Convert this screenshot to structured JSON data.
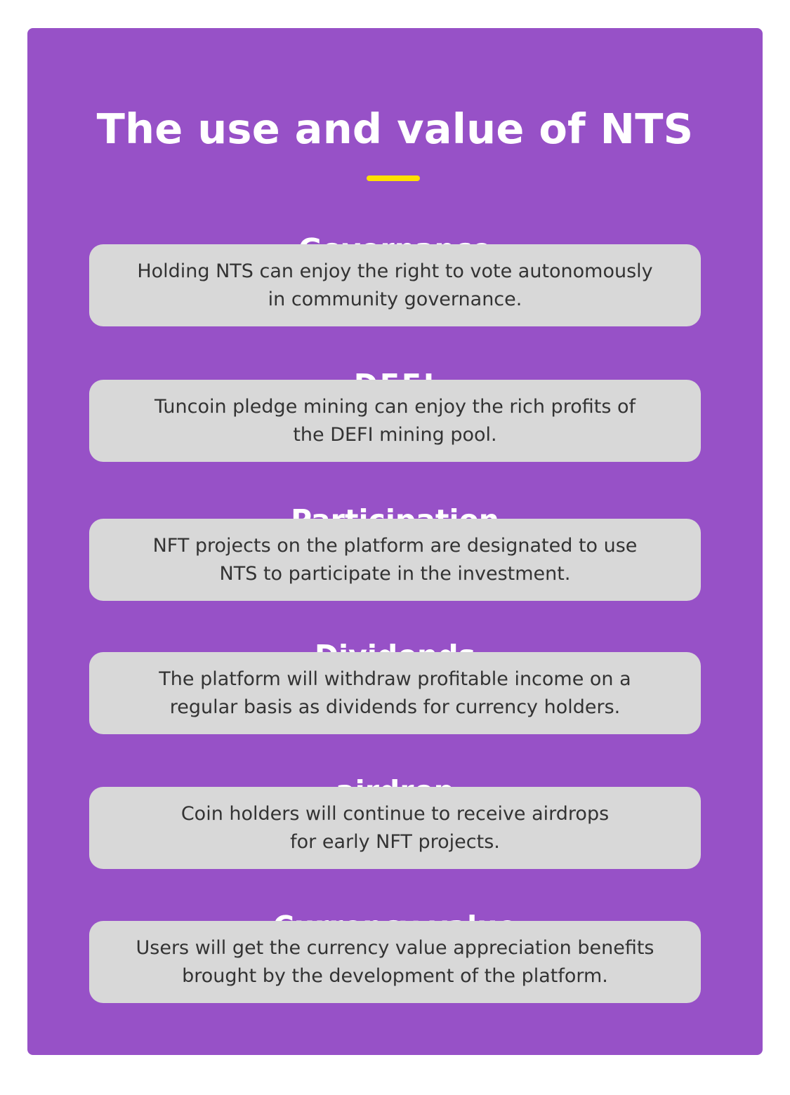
{
  "title": "The use and value of NTS",
  "colors": {
    "card_background": "#9751c7",
    "accent_underline": "#ffe000",
    "box_background": "#d8d8d8",
    "heading_text": "#ffffff",
    "body_text": "#333333"
  },
  "sections": [
    {
      "heading": "Governance",
      "lines": [
        "Holding NTS can enjoy the right to vote autonomously",
        "in community governance."
      ]
    },
    {
      "heading": "DEFI",
      "lines": [
        "Tuncoin pledge mining can enjoy the rich profits of",
        "the DEFI mining pool."
      ]
    },
    {
      "heading": "Participation",
      "lines": [
        "NFT projects on the platform are designated to use",
        "NTS to participate in the investment."
      ]
    },
    {
      "heading": "Dividends",
      "lines": [
        "The platform will withdraw profitable income on a",
        "regular basis as dividends for currency holders."
      ]
    },
    {
      "heading": "airdrop",
      "lines": [
        "Coin holders will continue to receive airdrops",
        "for early NFT projects."
      ]
    },
    {
      "heading": "Currency value",
      "lines": [
        "Users will get the currency value appreciation benefits",
        "brought by the development of the platform."
      ]
    }
  ]
}
